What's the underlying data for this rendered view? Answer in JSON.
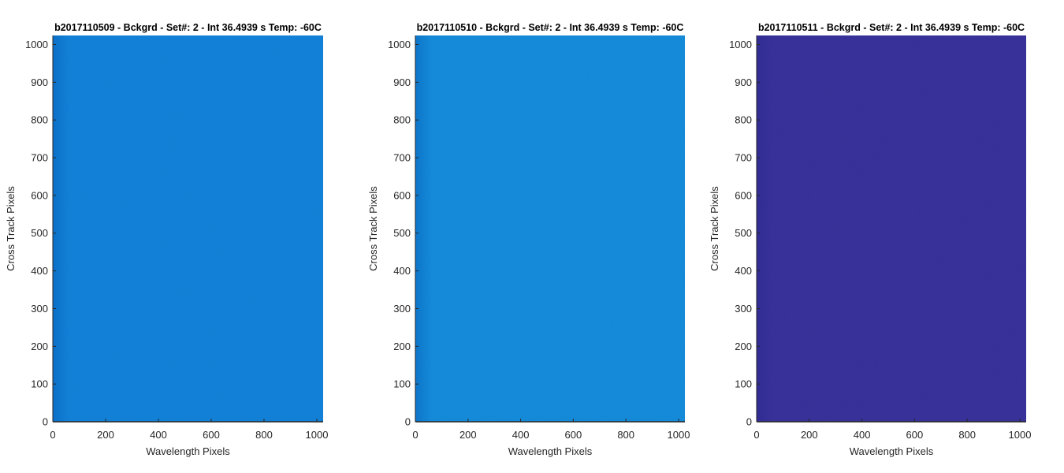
{
  "chart_data": [
    {
      "type": "heatmap",
      "title": "b2017110509 - Bckgrd - Set#: 2 - Int 36.4939 s Temp: -60C",
      "xlabel": "Wavelength Pixels",
      "ylabel": "Cross Track Pixels",
      "xlim": [
        0,
        1024
      ],
      "ylim": [
        0,
        1024
      ],
      "xticks": [
        0,
        200,
        400,
        600,
        800,
        1000
      ],
      "yticks": [
        0,
        100,
        200,
        300,
        400,
        500,
        600,
        700,
        800,
        900,
        1000
      ],
      "fill_color": "#0f7fd6",
      "edge_color": "#0a6ec8",
      "grid": false
    },
    {
      "type": "heatmap",
      "title": "b2017110510 - Bckgrd - Set#: 2 - Int 36.4939 s Temp: -60C",
      "xlabel": "Wavelength Pixels",
      "ylabel": "Cross Track Pixels",
      "xlim": [
        0,
        1024
      ],
      "ylim": [
        0,
        1024
      ],
      "xticks": [
        0,
        200,
        400,
        600,
        800,
        1000
      ],
      "yticks": [
        0,
        100,
        200,
        300,
        400,
        500,
        600,
        700,
        800,
        900,
        1000
      ],
      "fill_color": "#1289d8",
      "edge_color": "#0b74c9",
      "grid": false
    },
    {
      "type": "heatmap",
      "title": "b2017110511 - Bckgrd - Set#: 2 - Int 36.4939 s Temp: -60C",
      "xlabel": "Wavelength Pixels",
      "ylabel": "Cross Track Pixels",
      "xlim": [
        0,
        1024
      ],
      "ylim": [
        0,
        1024
      ],
      "xticks": [
        0,
        200,
        400,
        600,
        800,
        1000
      ],
      "yticks": [
        0,
        100,
        200,
        300,
        400,
        500,
        600,
        700,
        800,
        900,
        1000
      ],
      "fill_color": "#352f98",
      "edge_color": "#2f2a92",
      "grid": false
    }
  ]
}
